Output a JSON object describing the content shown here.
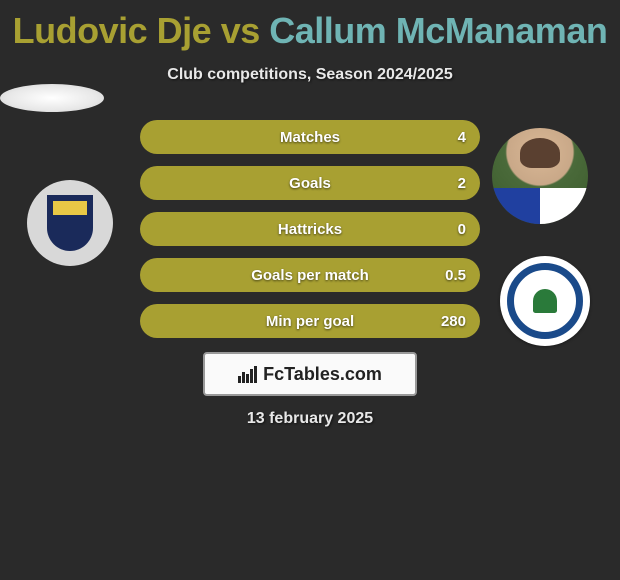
{
  "title": {
    "player1": "Ludovic Dje",
    "vs": " vs ",
    "player2": "Callum McManaman",
    "color1": "#a8a032",
    "color2": "#6fb4b4"
  },
  "subtitle": "Club competitions, Season 2024/2025",
  "stats": {
    "pill_color_left": "#a8a032",
    "pill_color_right": "#a8a032",
    "rows": [
      {
        "label": "Matches",
        "left": "",
        "right": "4"
      },
      {
        "label": "Goals",
        "left": "",
        "right": "2"
      },
      {
        "label": "Hattricks",
        "left": "",
        "right": "0"
      },
      {
        "label": "Goals per match",
        "left": "",
        "right": "0.5"
      },
      {
        "label": "Min per goal",
        "left": "",
        "right": "280"
      }
    ]
  },
  "watermark": "FcTables.com",
  "date": "13 february 2025",
  "badges": {
    "left_name": "stockport-county-badge",
    "right_name": "wigan-athletic-badge"
  },
  "colors": {
    "background": "#2a2a2a",
    "text_light": "#e8e8e8"
  }
}
